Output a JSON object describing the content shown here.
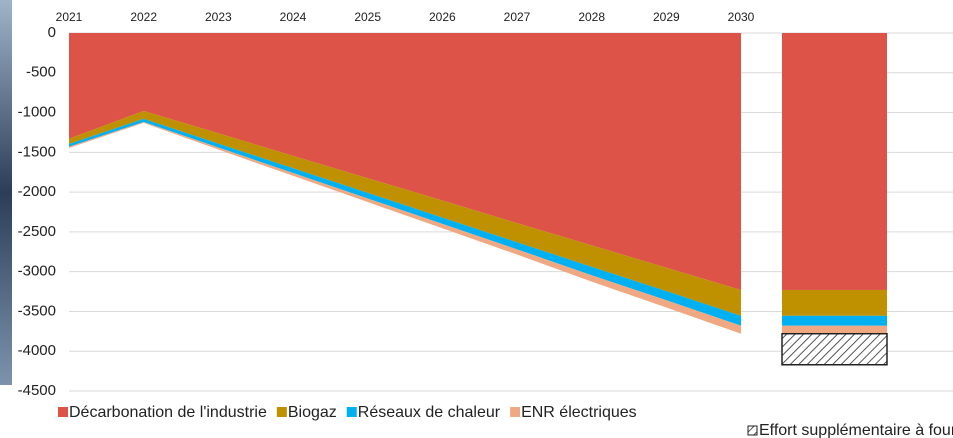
{
  "chart_data": [
    {
      "type": "stacked_area",
      "categories": [
        "2021",
        "2022",
        "2023",
        "2024",
        "2025",
        "2026",
        "2027",
        "2028",
        "2029",
        "2030"
      ],
      "series": [
        {
          "name": "Décarbonation de l'industrie",
          "color": "#dd5347",
          "values": [
            -1330,
            -980,
            -1260,
            -1545,
            -1825,
            -2105,
            -2390,
            -2670,
            -2950,
            -3230
          ]
        },
        {
          "name": "Biogaz",
          "color": "#bf9000",
          "values": [
            -65,
            -100,
            -130,
            -155,
            -185,
            -215,
            -240,
            -270,
            -295,
            -325
          ]
        },
        {
          "name": "Réseaux de chaleur",
          "color": "#00b0f0",
          "values": [
            -35,
            -38,
            -50,
            -60,
            -70,
            -80,
            -90,
            -105,
            -115,
            -125
          ]
        },
        {
          "name": "ENR électriques",
          "color": "#f0a882",
          "values": [
            -15,
            -12,
            -25,
            -35,
            -45,
            -55,
            -65,
            -80,
            -90,
            -100
          ]
        }
      ],
      "ylim": [
        -4500,
        0
      ],
      "yticks": [
        0,
        -500,
        -1000,
        -1500,
        -2000,
        -2500,
        -3000,
        -3500,
        -4000,
        -4500
      ],
      "grid": true
    },
    {
      "type": "stacked_bar",
      "categories": [
        null
      ],
      "series": [
        {
          "color": "#dd5347",
          "values": [
            -3230
          ]
        },
        {
          "color": "#bf9000",
          "values": [
            -325
          ]
        },
        {
          "color": "#00b0f0",
          "values": [
            -125
          ]
        },
        {
          "color": "#f0a882",
          "values": [
            -100
          ]
        },
        {
          "name": "Effort supplémentaire à fournir",
          "color": "hatch",
          "values": [
            -390
          ]
        }
      ],
      "ylim": [
        -4500,
        0
      ]
    }
  ]
}
